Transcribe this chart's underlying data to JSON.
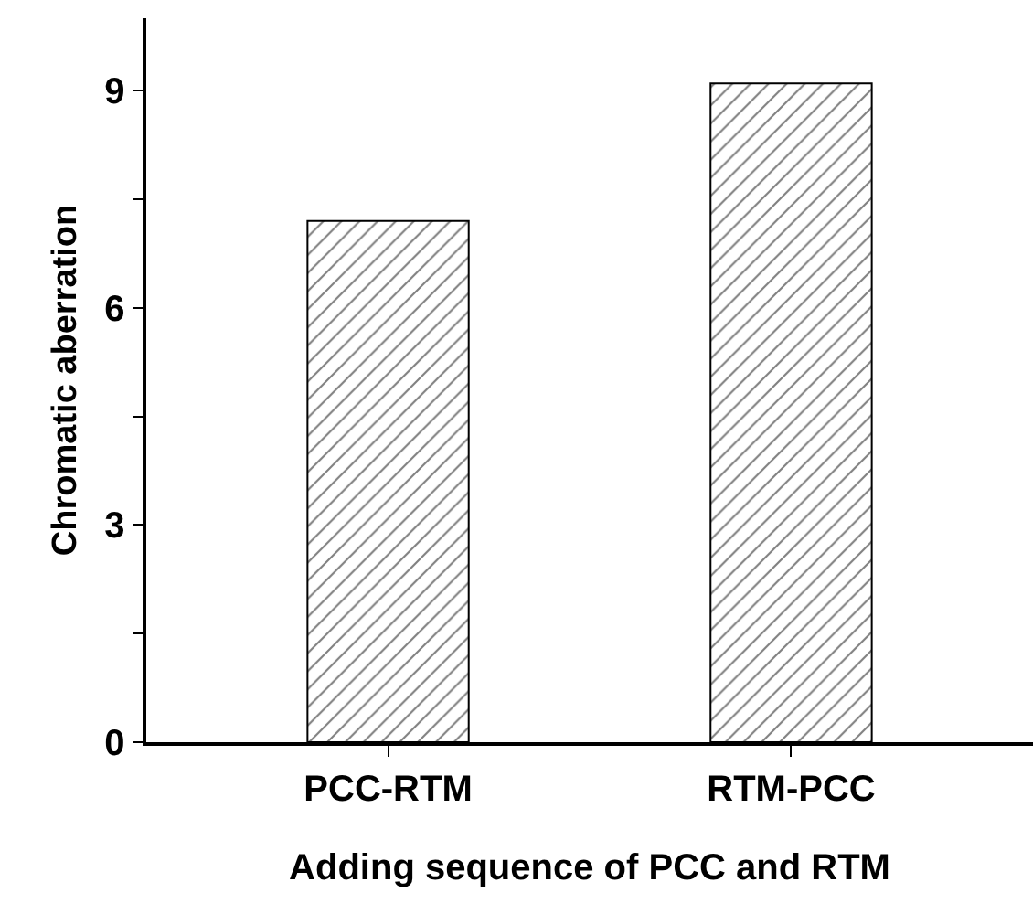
{
  "chart_data": {
    "type": "bar",
    "xlabel": "Adding sequence of PCC and RTM",
    "ylabel": "Chromatic aberration",
    "categories": [
      "PCC-RTM",
      "RTM-PCC"
    ],
    "values": [
      7.2,
      9.1
    ],
    "color": "#000000",
    "ylim": [
      0,
      10
    ],
    "yticks": [
      0,
      {
        "value": 1.5,
        "label": null
      },
      3,
      {
        "value": 4.5,
        "label": null
      },
      6,
      {
        "value": 7.5,
        "label": null
      },
      9
    ]
  }
}
